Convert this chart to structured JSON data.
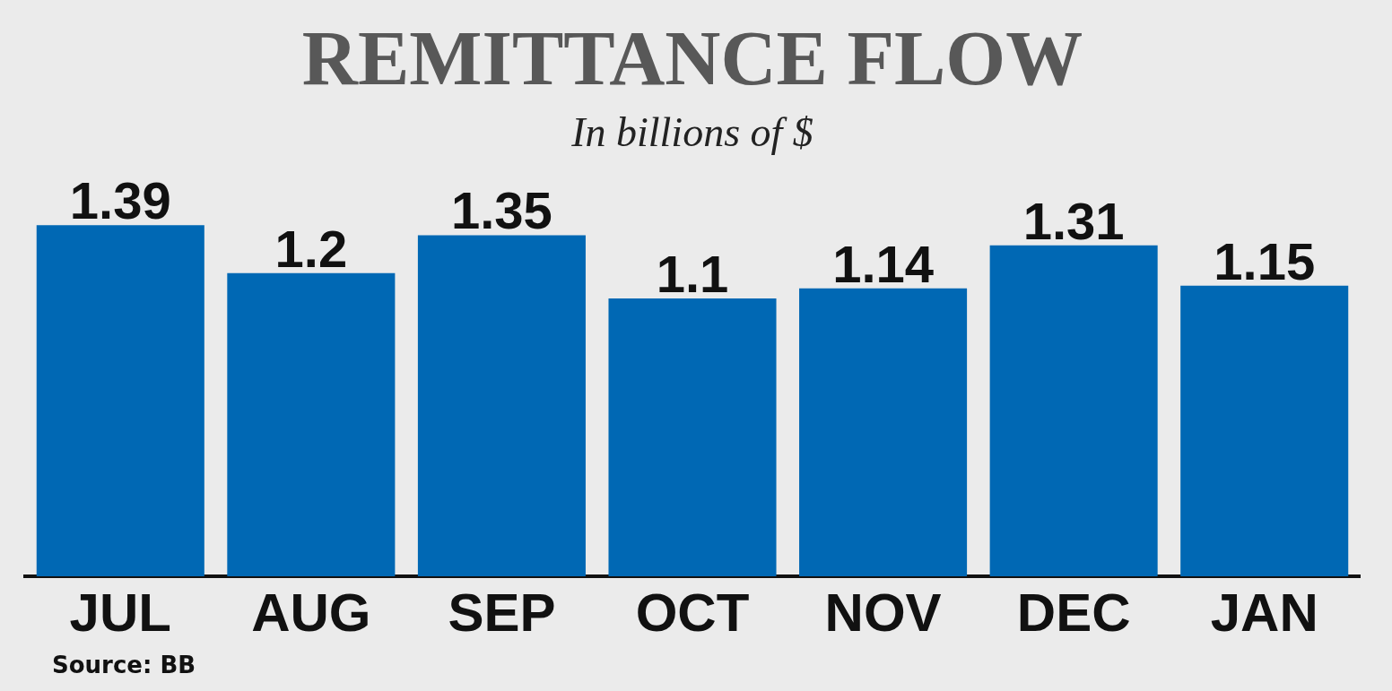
{
  "chart_data": {
    "type": "bar",
    "title": "REMITTANCE FLOW",
    "subtitle": "In billions of $",
    "categories": [
      "JUL",
      "AUG",
      "SEP",
      "OCT",
      "NOV",
      "DEC",
      "JAN"
    ],
    "values": [
      1.39,
      1.2,
      1.35,
      1.1,
      1.14,
      1.31,
      1.15
    ],
    "color": "#0068b4",
    "data_labels": true,
    "annotations": [
      "Source: BB"
    ]
  }
}
